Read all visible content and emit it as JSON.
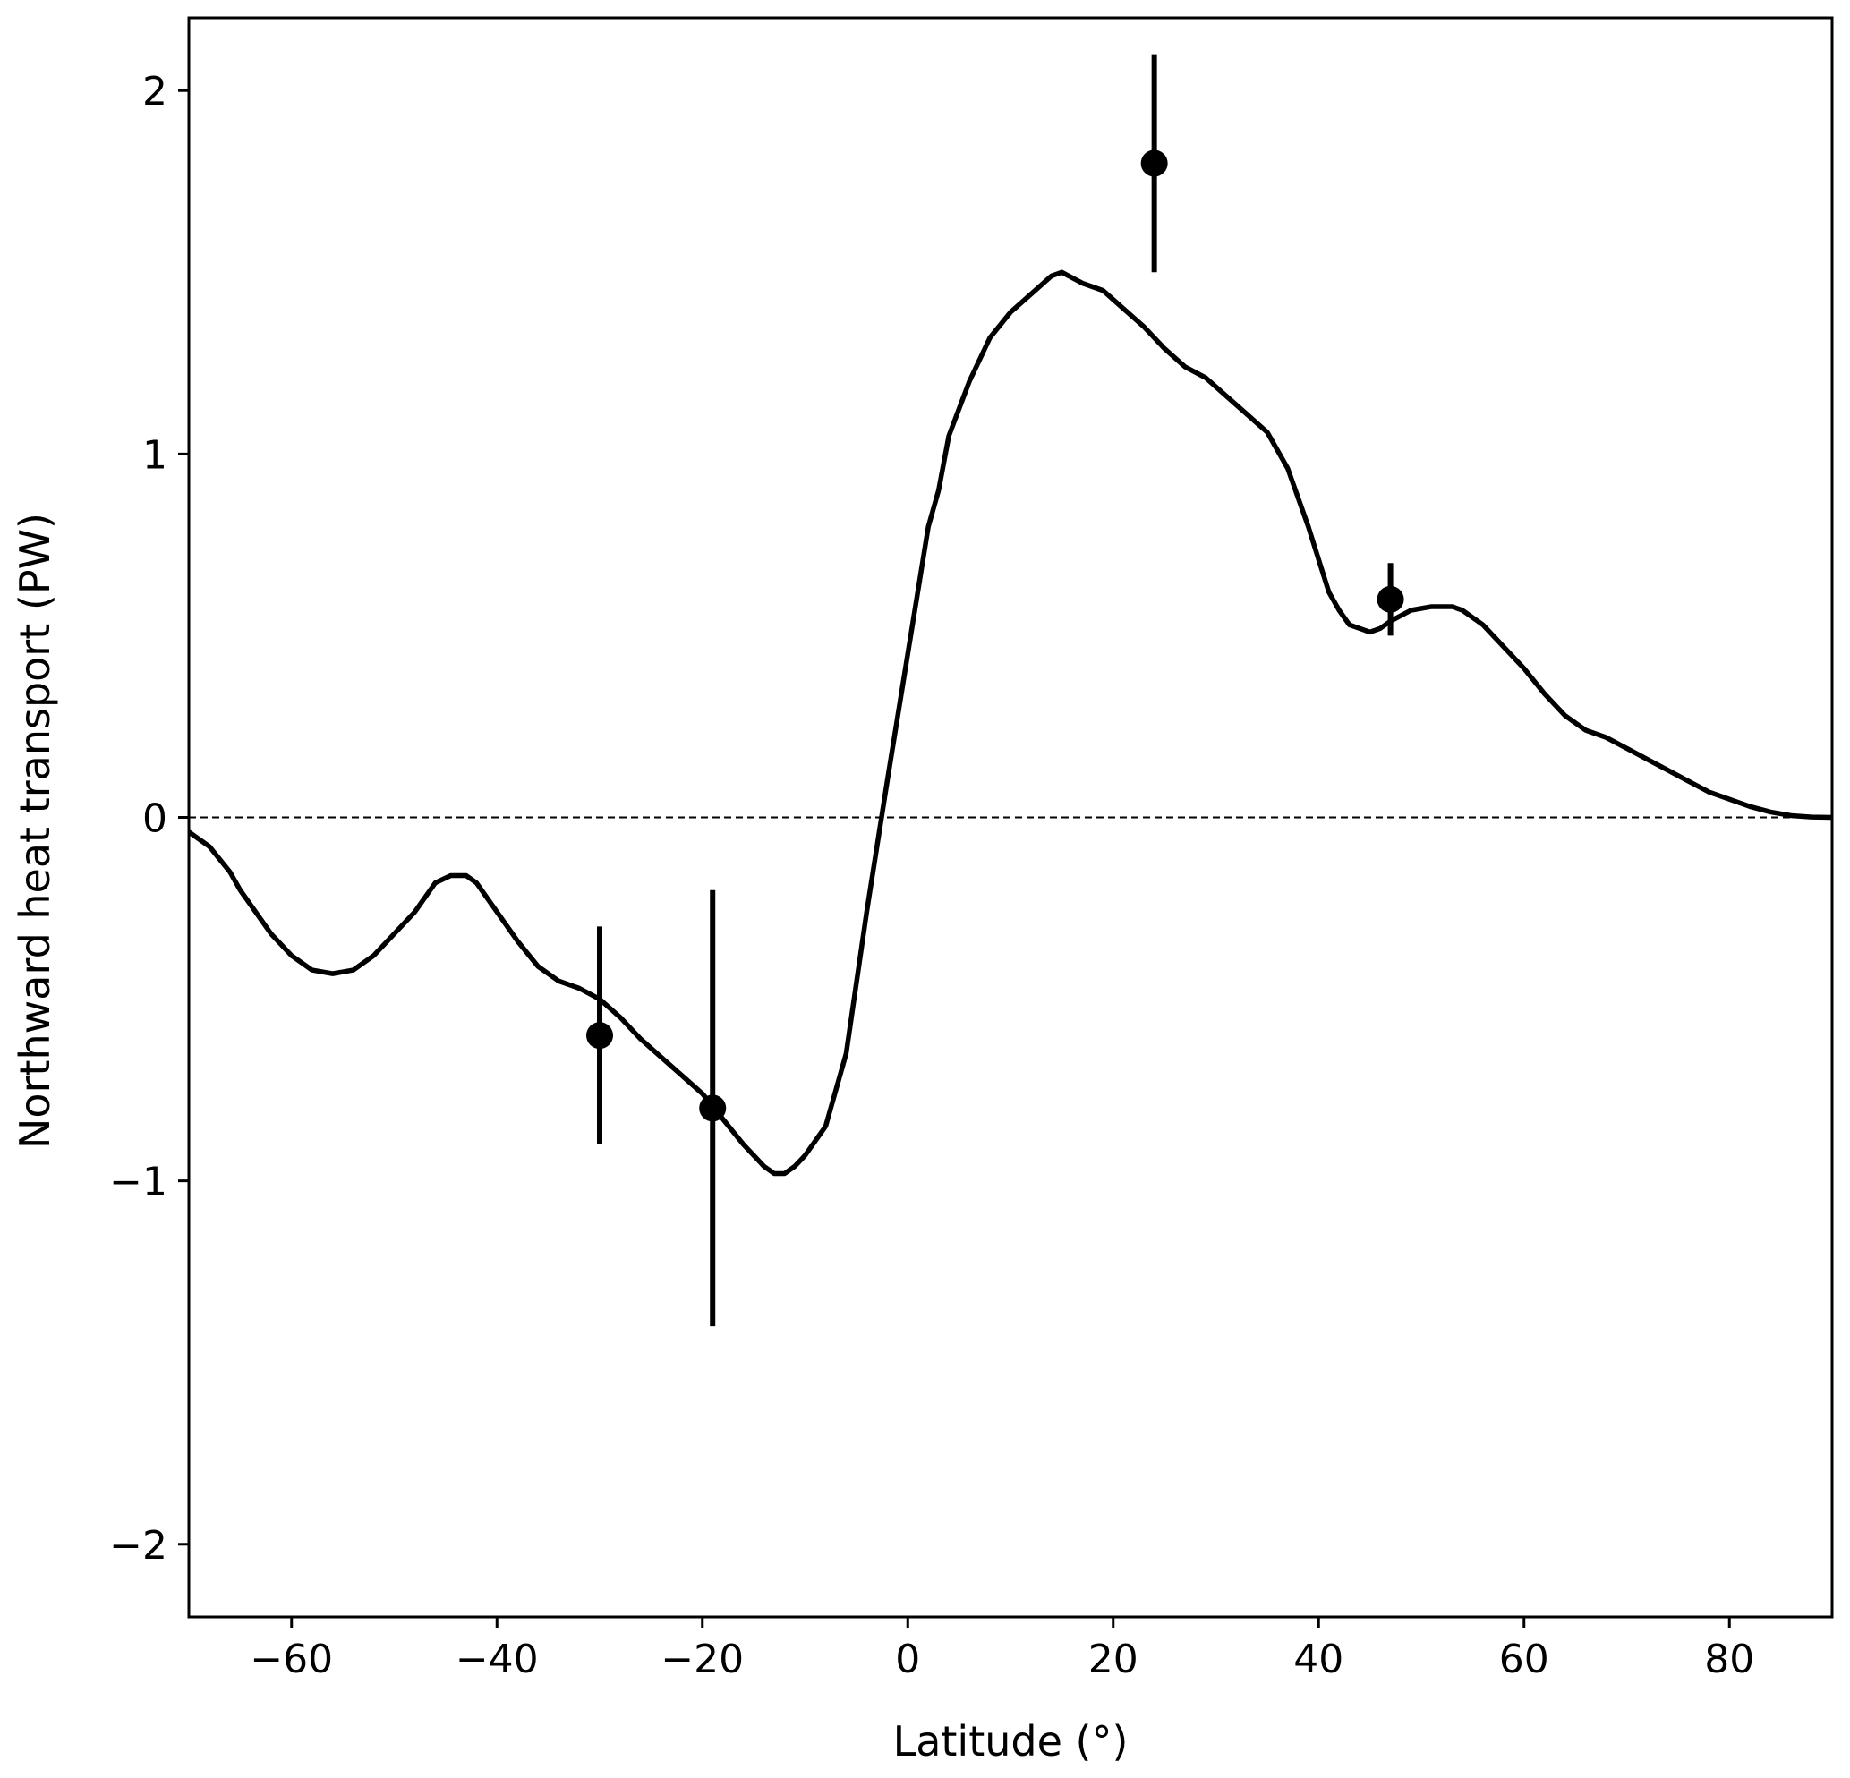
{
  "chart_data": {
    "type": "line",
    "title": "",
    "xlabel": "Latitude (°)",
    "ylabel": "Northward heat transport (PW)",
    "xlim": [
      -70,
      90
    ],
    "ylim": [
      -2.2,
      2.2
    ],
    "xticks": [
      -60,
      -40,
      -20,
      0,
      20,
      40,
      60,
      80
    ],
    "yticks": [
      -2,
      -1,
      0,
      1,
      2
    ],
    "xtick_labels": [
      "−60",
      "−40",
      "−20",
      "0",
      "20",
      "40",
      "60",
      "80"
    ],
    "ytick_labels": [
      "−2",
      "−1",
      "0",
      "1",
      "2"
    ],
    "grid": false,
    "legend": "none",
    "zero_line": {
      "y": 0,
      "style": "dashed",
      "color": "#000000"
    },
    "series": [
      {
        "type": "line",
        "color": "#000000",
        "x": [
          -70,
          -68,
          -66,
          -65,
          -64,
          -62,
          -60,
          -58,
          -56,
          -54,
          -52,
          -50,
          -48,
          -46,
          -44.5,
          -43,
          -42,
          -40,
          -38,
          -36,
          -35,
          -34,
          -32,
          -30,
          -28,
          -26,
          -24,
          -22,
          -20,
          -18,
          -16,
          -14,
          -13,
          -12,
          -11,
          -10,
          -8,
          -6,
          -4,
          -2,
          0,
          2,
          3,
          4,
          6,
          8,
          10,
          12,
          14,
          15,
          17,
          19,
          21,
          23,
          25,
          27,
          29,
          31,
          33,
          35,
          37,
          39,
          41,
          42,
          43,
          45,
          46,
          47,
          49,
          51,
          53,
          54,
          56,
          58,
          60,
          62,
          64,
          65,
          66,
          68,
          70,
          72,
          74,
          76,
          78,
          80,
          82,
          84,
          86,
          88,
          90
        ],
        "y": [
          -0.04,
          -0.08,
          -0.15,
          -0.2,
          -0.24,
          -0.32,
          -0.38,
          -0.42,
          -0.43,
          -0.42,
          -0.38,
          -0.32,
          -0.26,
          -0.18,
          -0.16,
          -0.16,
          -0.18,
          -0.26,
          -0.34,
          -0.41,
          -0.43,
          -0.45,
          -0.47,
          -0.5,
          -0.55,
          -0.61,
          -0.66,
          -0.71,
          -0.76,
          -0.83,
          -0.9,
          -0.96,
          -0.98,
          -0.98,
          -0.96,
          -0.93,
          -0.85,
          -0.65,
          -0.26,
          0.1,
          0.45,
          0.8,
          0.9,
          1.05,
          1.2,
          1.32,
          1.39,
          1.44,
          1.49,
          1.5,
          1.47,
          1.45,
          1.4,
          1.35,
          1.29,
          1.24,
          1.21,
          1.16,
          1.11,
          1.06,
          0.96,
          0.8,
          0.62,
          0.57,
          0.53,
          0.51,
          0.52,
          0.54,
          0.57,
          0.58,
          0.58,
          0.57,
          0.53,
          0.47,
          0.41,
          0.34,
          0.28,
          0.26,
          0.24,
          0.22,
          0.19,
          0.16,
          0.13,
          0.1,
          0.07,
          0.05,
          0.03,
          0.015,
          0.005,
          0.001,
          0.0
        ]
      },
      {
        "type": "errorbar",
        "color": "#000000",
        "points": [
          {
            "x": -30,
            "y": -0.6,
            "low": -0.9,
            "high": -0.3
          },
          {
            "x": -19,
            "y": -0.8,
            "low": -1.4,
            "high": -0.2
          },
          {
            "x": 24,
            "y": 1.8,
            "low": 1.5,
            "high": 2.1
          },
          {
            "x": 47,
            "y": 0.6,
            "low": 0.5,
            "high": 0.7
          }
        ]
      }
    ]
  }
}
